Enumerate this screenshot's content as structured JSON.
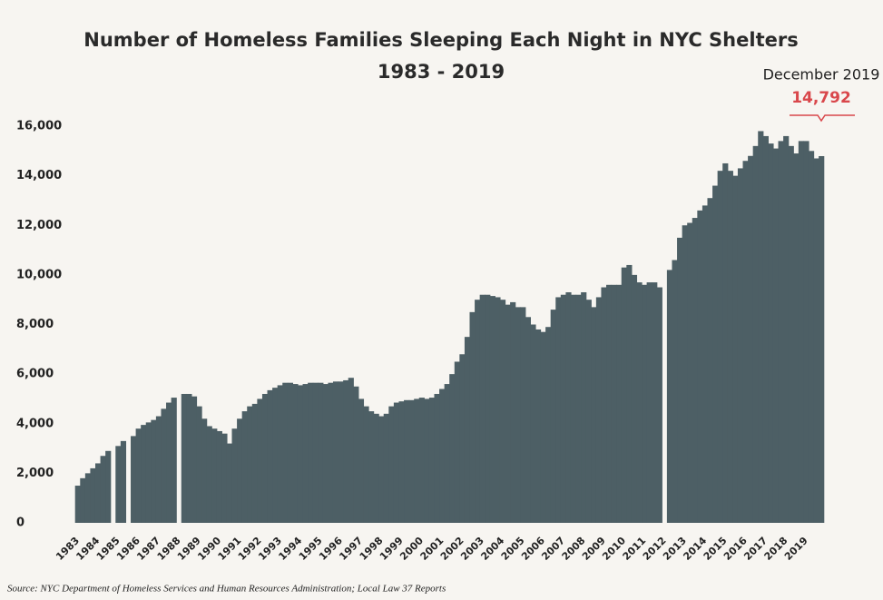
{
  "chart_data": {
    "type": "bar",
    "title": "Number of Homeless Families Sleeping Each Night in NYC Shelters",
    "subtitle": "1983 - 2019",
    "source": "Source:  NYC Department of Homeless Services and Human Resources Administration; Local Law 37 Reports",
    "annotations": [
      {
        "text": "December 2019"
      },
      {
        "text": "14,792"
      }
    ],
    "color": "#4d5f65",
    "categories": [
      "1983",
      null,
      null,
      null,
      "1984",
      null,
      null,
      null,
      "1985",
      null,
      null,
      null,
      "1986",
      null,
      null,
      null,
      "1987",
      null,
      null,
      null,
      "1988",
      null,
      null,
      null,
      "1989",
      null,
      null,
      null,
      "1990",
      null,
      null,
      null,
      "1991",
      null,
      null,
      null,
      "1992",
      null,
      null,
      null,
      "1993",
      null,
      null,
      null,
      "1994",
      null,
      null,
      null,
      "1995",
      null,
      null,
      null,
      "1996",
      null,
      null,
      null,
      "1997",
      null,
      null,
      null,
      "1998",
      null,
      null,
      null,
      "1999",
      null,
      null,
      null,
      "2000",
      null,
      null,
      null,
      "2001",
      null,
      null,
      null,
      "2002",
      null,
      null,
      null,
      "2003",
      null,
      null,
      null,
      "2004",
      null,
      null,
      null,
      "2005",
      null,
      null,
      null,
      "2006",
      null,
      null,
      null,
      "2007",
      null,
      null,
      null,
      "2008",
      null,
      null,
      null,
      "2009",
      null,
      null,
      null,
      "2010",
      null,
      null,
      null,
      "2011",
      null,
      null,
      null,
      "2012",
      null,
      null,
      null,
      "2013",
      null,
      null,
      null,
      "2014",
      null,
      null,
      null,
      "2015",
      null,
      null,
      null,
      "2016",
      null,
      null,
      null,
      "2017",
      null,
      null,
      null,
      "2018",
      null,
      null,
      null,
      "2019",
      null,
      null,
      null
    ],
    "values": [
      1500,
      1800,
      2000,
      2200,
      2400,
      2700,
      2900,
      null,
      3100,
      3300,
      null,
      3500,
      3800,
      3950,
      4050,
      4150,
      4300,
      4600,
      4850,
      5050,
      null,
      5200,
      5200,
      5100,
      4700,
      4200,
      3900,
      3800,
      3700,
      3600,
      3200,
      3800,
      4200,
      4500,
      4700,
      4800,
      5000,
      5200,
      5350,
      5450,
      5550,
      5650,
      5650,
      5600,
      5550,
      5600,
      5650,
      5650,
      5650,
      5600,
      5650,
      5700,
      5700,
      5750,
      5850,
      5500,
      5000,
      4700,
      4500,
      4400,
      4300,
      4400,
      4700,
      4850,
      4900,
      4950,
      4950,
      5000,
      5050,
      5000,
      5050,
      5200,
      5400,
      5600,
      6000,
      6500,
      6800,
      7500,
      8500,
      9000,
      9200,
      9200,
      9150,
      9100,
      9000,
      8800,
      8900,
      8700,
      8700,
      8300,
      8000,
      7800,
      7700,
      7900,
      8600,
      9100,
      9200,
      9300,
      9200,
      9200,
      9300,
      9000,
      8700,
      9100,
      9500,
      9600,
      9600,
      9600,
      10300,
      10400,
      10000,
      9700,
      9600,
      9700,
      9700,
      9500,
      null,
      10200,
      10600,
      11500,
      12000,
      12100,
      12300,
      12600,
      12800,
      13100,
      13600,
      14200,
      14500,
      14200,
      14000,
      14300,
      14600,
      14800,
      15200,
      15800,
      15600,
      15300,
      15100,
      15400,
      15600,
      15200,
      14900,
      15400,
      15400,
      15000,
      14700,
      14792
    ],
    "ylim": [
      0,
      16000
    ],
    "yticks": [
      0,
      {
        "value": 2000,
        "label": "2,000"
      },
      {
        "value": 4000,
        "label": "4,000"
      },
      {
        "value": 6000,
        "label": "6,000"
      },
      {
        "value": 8000,
        "label": "8,000"
      },
      {
        "value": 10000,
        "label": "10,000"
      },
      {
        "value": 12000,
        "label": "12,000"
      },
      {
        "value": 14000,
        "label": "14,000"
      },
      {
        "value": 16000,
        "label": "16,000"
      }
    ],
    "grid": false
  }
}
